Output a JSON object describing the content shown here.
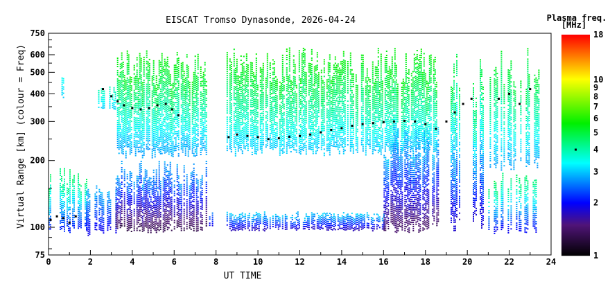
{
  "chart_data": {
    "type": "heatmap",
    "title": "EISCAT Tromso Dynasonde, 2026-04-24",
    "xlabel": "UT TIME",
    "ylabel": "Virtual Range [km] (colour = Freq)",
    "xlim": [
      0,
      24
    ],
    "ylim": [
      75,
      750
    ],
    "yscale": "log",
    "xticks": [
      0,
      2,
      4,
      6,
      8,
      10,
      12,
      14,
      16,
      18,
      20,
      22,
      24
    ],
    "yticks": [
      75,
      100,
      200,
      300,
      400,
      500,
      600,
      750
    ],
    "colorbar": {
      "label_line1": "Plasma freq.",
      "label_line2": "[MHz]",
      "range": [
        1,
        18
      ],
      "scale": "log",
      "ticks": [
        1,
        2,
        3,
        4,
        5,
        6,
        7,
        8,
        9,
        10,
        18
      ],
      "marker_value": 4
    },
    "regions": [
      {
        "t": [
          0.0,
          1.8
        ],
        "h": [
          95,
          185
        ],
        "f": [
          1.9,
          5.0
        ],
        "density": 0.7
      },
      {
        "t": [
          0.55,
          0.7
        ],
        "h": [
          385,
          480
        ],
        "f": [
          3.0,
          3.5
        ],
        "density": 0.8
      },
      {
        "t": [
          1.8,
          3.2
        ],
        "h": [
          92,
          160
        ],
        "f": [
          1.8,
          3.0
        ],
        "density": 0.6
      },
      {
        "t": [
          2.3,
          3.2
        ],
        "h": [
          340,
          440
        ],
        "f": [
          3.0,
          4.0
        ],
        "density": 0.7
      },
      {
        "t": [
          3.2,
          7.6
        ],
        "h": [
          95,
          200
        ],
        "f": [
          1.2,
          3.0
        ],
        "density": 0.8
      },
      {
        "t": [
          3.2,
          7.6
        ],
        "h": [
          205,
          650
        ],
        "f": [
          2.6,
          6.0
        ],
        "density": 0.85
      },
      {
        "t": [
          7.6,
          7.9
        ],
        "h": [
          100,
          120
        ],
        "f": [
          1.8,
          2.6
        ],
        "density": 0.7
      },
      {
        "t": [
          8.5,
          16.0
        ],
        "h": [
          97,
          118
        ],
        "f": [
          1.6,
          3.2
        ],
        "density": 0.85
      },
      {
        "t": [
          8.5,
          18.6
        ],
        "h": [
          210,
          650
        ],
        "f": [
          2.8,
          6.0
        ],
        "density": 0.85
      },
      {
        "t": [
          16.0,
          18.6
        ],
        "h": [
          95,
          300
        ],
        "f": [
          1.3,
          3.3
        ],
        "density": 0.85
      },
      {
        "t": [
          19.0,
          20.8
        ],
        "h": [
          95,
          650
        ],
        "f": [
          1.6,
          5.5
        ],
        "density": 0.5
      },
      {
        "t": [
          21.0,
          23.6
        ],
        "h": [
          92,
          180
        ],
        "f": [
          1.8,
          5.0
        ],
        "density": 0.5
      },
      {
        "t": [
          21.0,
          23.5
        ],
        "h": [
          180,
          650
        ],
        "f": [
          2.6,
          5.5
        ],
        "density": 0.4
      }
    ],
    "trace": [
      [
        0.1,
        108
      ],
      [
        0.4,
        112
      ],
      [
        0.7,
        110
      ],
      [
        1.0,
        105
      ],
      [
        1.3,
        112
      ],
      [
        2.6,
        420
      ],
      [
        3.0,
        390
      ],
      [
        3.3,
        370
      ],
      [
        3.6,
        355
      ],
      [
        4.0,
        345
      ],
      [
        4.4,
        340
      ],
      [
        4.8,
        345
      ],
      [
        5.2,
        355
      ],
      [
        5.6,
        360
      ],
      [
        5.9,
        340
      ],
      [
        6.2,
        320
      ],
      [
        8.6,
        255
      ],
      [
        9.0,
        262
      ],
      [
        9.5,
        258
      ],
      [
        10.0,
        255
      ],
      [
        10.5,
        250
      ],
      [
        11.0,
        252
      ],
      [
        11.5,
        256
      ],
      [
        12.0,
        258
      ],
      [
        12.5,
        262
      ],
      [
        13.0,
        268
      ],
      [
        13.5,
        275
      ],
      [
        14.0,
        280
      ],
      [
        14.5,
        287
      ],
      [
        15.0,
        292
      ],
      [
        15.5,
        295
      ],
      [
        16.0,
        298
      ],
      [
        16.5,
        300
      ],
      [
        17.0,
        302
      ],
      [
        17.5,
        300
      ],
      [
        18.0,
        292
      ],
      [
        18.5,
        278
      ],
      [
        19.0,
        300
      ],
      [
        19.4,
        330
      ],
      [
        19.8,
        360
      ],
      [
        20.2,
        380
      ],
      [
        21.5,
        380
      ],
      [
        22.0,
        400
      ],
      [
        22.5,
        360
      ],
      [
        23.0,
        420
      ]
    ]
  }
}
